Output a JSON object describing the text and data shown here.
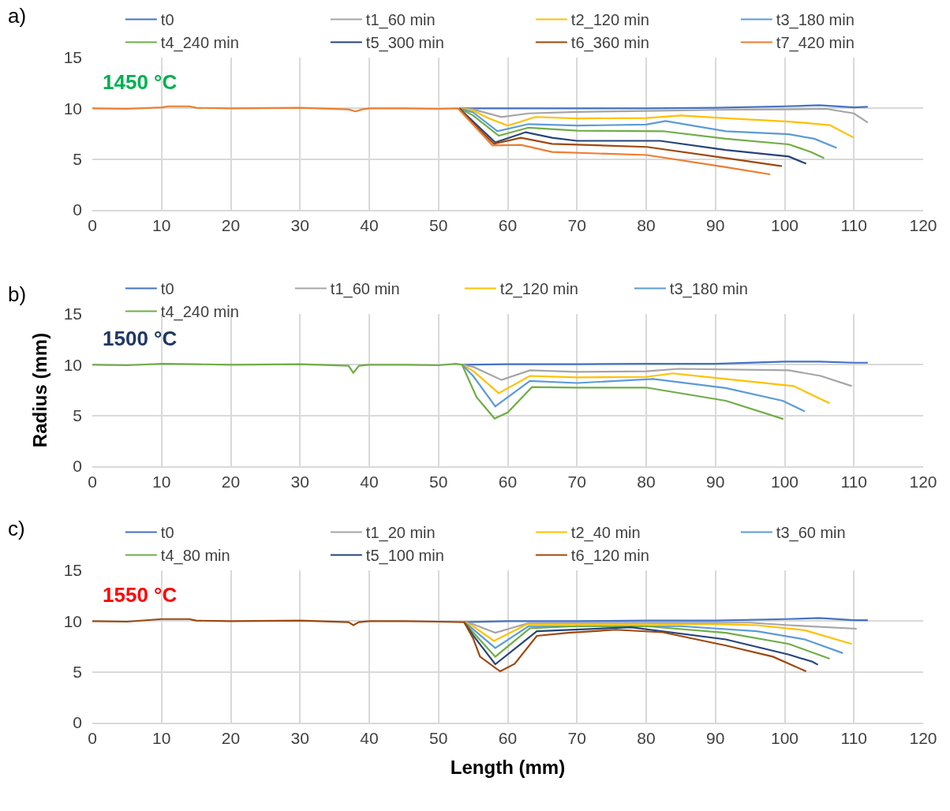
{
  "chart_data": [
    {
      "type": "line",
      "title": "a)",
      "annotations": [
        "1450 °C"
      ],
      "xlim": [
        0,
        120
      ],
      "xticks": [
        0,
        10,
        20,
        30,
        40,
        50,
        60,
        70,
        80,
        90,
        100,
        110,
        120
      ],
      "ylim": [
        0,
        15
      ],
      "yticks": [
        0,
        5,
        10,
        15
      ],
      "grid": true,
      "legend": "top",
      "marker": "none",
      "line_style": "solid",
      "series": [
        {
          "name": "t0",
          "color": "#4472c4",
          "x": [
            53,
            60,
            70,
            80,
            90,
            100,
            105,
            110,
            112
          ],
          "values": [
            10,
            10,
            10,
            10,
            10.05,
            10.2,
            10.3,
            10.1,
            10.15
          ]
        },
        {
          "name": "t1_60 min",
          "color": "#a5a5a5",
          "x": [
            53,
            55,
            59.1,
            63,
            70,
            80,
            90,
            100,
            106,
            110,
            112
          ],
          "values": [
            10,
            9.9,
            9.15,
            9.5,
            9.65,
            9.75,
            9.85,
            9.9,
            9.95,
            9.5,
            8.6
          ]
        },
        {
          "name": "t2_120 min",
          "color": "#ffc000",
          "x": [
            53,
            55,
            57,
            60,
            64,
            70,
            80,
            85,
            92,
            100.6,
            106.5,
            110
          ],
          "values": [
            10,
            9.8,
            9.1,
            8.3,
            9.15,
            9.0,
            9.05,
            9.3,
            9.0,
            8.7,
            8.35,
            7.1
          ]
        },
        {
          "name": "t3_180 min",
          "color": "#5b9bd5",
          "x": [
            53,
            55,
            58.5,
            63,
            70,
            80,
            82.8,
            91.5,
            100.6,
            104.3,
            107.5
          ],
          "values": [
            10,
            9.6,
            7.75,
            8.45,
            8.3,
            8.4,
            8.75,
            7.75,
            7.45,
            7.0,
            6.1
          ]
        },
        {
          "name": "t4_240 min",
          "color": "#70ad47",
          "x": [
            53,
            55,
            58.7,
            63,
            70,
            82.4,
            91.5,
            100.6,
            103.8,
            105.7
          ],
          "values": [
            10,
            9.3,
            7.3,
            8.1,
            7.8,
            7.75,
            7.0,
            6.45,
            5.7,
            5.1
          ]
        },
        {
          "name": "t5_300 min",
          "color": "#264478",
          "x": [
            53,
            55,
            58.2,
            62.6,
            66.4,
            70,
            82,
            91.5,
            100.6,
            103.1
          ],
          "values": [
            10,
            8.7,
            6.65,
            7.65,
            7.1,
            6.8,
            6.8,
            5.9,
            5.25,
            4.55
          ]
        },
        {
          "name": "t6_360 min",
          "color": "#9e480e",
          "x": [
            53,
            55,
            58,
            61.9,
            66.4,
            80.1,
            91.5,
            99.6
          ],
          "values": [
            10,
            8.5,
            6.5,
            7.1,
            6.5,
            6.2,
            5.1,
            4.3
          ]
        },
        {
          "name": "t7_420 min",
          "color": "#ed7d31",
          "x": [
            0,
            5,
            10,
            11,
            14,
            15,
            20,
            30,
            37,
            38,
            39,
            40,
            45,
            50,
            52.8,
            55,
            57.8,
            61.9,
            66.4,
            80.1,
            91.5,
            97.9
          ],
          "values": [
            10,
            9.95,
            10.1,
            10.2,
            10.2,
            10.05,
            10,
            10.05,
            9.9,
            9.7,
            9.9,
            10,
            10,
            9.95,
            10,
            8.4,
            6.35,
            6.4,
            5.7,
            5.4,
            4.2,
            3.5
          ]
        }
      ]
    },
    {
      "type": "line",
      "title": "b)",
      "annotations": [
        "1500 °C"
      ],
      "ylabel": "Radius (mm)",
      "xlim": [
        0,
        120
      ],
      "xticks": [
        0,
        10,
        20,
        30,
        40,
        50,
        60,
        70,
        80,
        90,
        100,
        110,
        120
      ],
      "ylim": [
        0,
        15
      ],
      "yticks": [
        0,
        5,
        10,
        15
      ],
      "grid": true,
      "legend": "top",
      "marker": "none",
      "line_style": "solid",
      "series": [
        {
          "name": "t0",
          "color": "#4472c4",
          "x": [
            53.4,
            60,
            70,
            80,
            90,
            100,
            105,
            110,
            112
          ],
          "values": [
            10,
            10.05,
            10.05,
            10.1,
            10.1,
            10.3,
            10.3,
            10.2,
            10.2
          ]
        },
        {
          "name": "t1_60 min",
          "color": "#a5a5a5",
          "x": [
            53.4,
            55,
            59.1,
            63.2,
            70,
            80,
            84.7,
            100.6,
            105.2,
            109.7
          ],
          "values": [
            10,
            9.8,
            8.5,
            9.45,
            9.3,
            9.35,
            9.6,
            9.45,
            8.9,
            7.9
          ]
        },
        {
          "name": "t2_120 min",
          "color": "#ffc000",
          "x": [
            53.4,
            55,
            58.7,
            63.2,
            70,
            80,
            83.8,
            91.5,
            101.3,
            106.5
          ],
          "values": [
            10,
            9.4,
            7.2,
            8.9,
            8.75,
            8.8,
            9.15,
            8.6,
            7.9,
            6.2
          ]
        },
        {
          "name": "t3_180 min",
          "color": "#5b9bd5",
          "x": [
            53.4,
            55,
            58.2,
            63.2,
            70,
            81,
            91.5,
            99.7,
            102.9
          ],
          "values": [
            10,
            8.9,
            5.9,
            8.4,
            8.2,
            8.6,
            7.7,
            6.45,
            5.4
          ]
        },
        {
          "name": "t4_240 min",
          "color": "#70ad47",
          "x": [
            0,
            5,
            10,
            15,
            20,
            30,
            37,
            37.7,
            38.5,
            40,
            45,
            50,
            52.5,
            53.4,
            55.5,
            58.1,
            60,
            63.5,
            70,
            80,
            91.5,
            99.8
          ],
          "values": [
            10,
            9.95,
            10.1,
            10.05,
            10,
            10.05,
            9.9,
            9.2,
            9.9,
            10,
            10,
            9.95,
            10.1,
            10,
            6.8,
            4.7,
            5.3,
            7.8,
            7.75,
            7.75,
            6.45,
            4.65
          ]
        }
      ]
    },
    {
      "type": "line",
      "title": "c)",
      "annotations": [
        "1550 °C"
      ],
      "xlabel": "Length (mm)",
      "xlim": [
        0,
        120
      ],
      "xticks": [
        0,
        10,
        20,
        30,
        40,
        50,
        60,
        70,
        80,
        90,
        100,
        110,
        120
      ],
      "ylim": [
        0,
        15
      ],
      "yticks": [
        0,
        5,
        10,
        15
      ],
      "grid": true,
      "legend": "top",
      "marker": "none",
      "line_style": "solid",
      "series": [
        {
          "name": "t0",
          "color": "#4472c4",
          "x": [
            53.7,
            60,
            70,
            80,
            90,
            100,
            105,
            110,
            112
          ],
          "values": [
            9.9,
            10,
            10,
            10.05,
            10.05,
            10.2,
            10.3,
            10.1,
            10.1
          ]
        },
        {
          "name": "t1_20 min",
          "color": "#a5a5a5",
          "x": [
            53.7,
            55,
            58.2,
            63.2,
            70,
            80,
            95,
            100.6,
            110.4
          ],
          "values": [
            9.9,
            9.7,
            8.85,
            9.85,
            9.85,
            9.85,
            9.85,
            9.6,
            9.25
          ]
        },
        {
          "name": "t2_40 min",
          "color": "#ffc000",
          "x": [
            53.7,
            55,
            58,
            62.8,
            70,
            80,
            90,
            96,
            102.9,
            109.7
          ],
          "values": [
            9.9,
            9.5,
            8.05,
            9.7,
            9.7,
            9.7,
            9.7,
            9.6,
            9.1,
            7.75
          ]
        },
        {
          "name": "t3_60 min",
          "color": "#5b9bd5",
          "x": [
            53.7,
            55,
            58.2,
            63,
            70,
            85,
            96,
            102.9,
            108.4
          ],
          "values": [
            9.9,
            9.2,
            7.35,
            9.5,
            9.5,
            9.5,
            9.0,
            8.2,
            6.85
          ]
        },
        {
          "name": "t4_80 min",
          "color": "#70ad47",
          "x": [
            53.7,
            55,
            58.2,
            63.2,
            70,
            80,
            91.5,
            100.6,
            106.5
          ],
          "values": [
            9.9,
            8.9,
            6.5,
            9.3,
            9.5,
            9.5,
            8.85,
            7.75,
            6.3
          ]
        },
        {
          "name": "t5_100 min",
          "color": "#264478",
          "x": [
            53.7,
            55,
            58.2,
            64.2,
            77.8,
            91.5,
            100.6,
            104,
            104.8
          ],
          "values": [
            9.9,
            8.6,
            5.75,
            9.0,
            9.4,
            8.2,
            6.7,
            6.0,
            5.7
          ]
        },
        {
          "name": "t6_120 min",
          "color": "#9e480e",
          "x": [
            0,
            5,
            10,
            14,
            15,
            20,
            30,
            37,
            37.7,
            38.5,
            40,
            45,
            50,
            53.7,
            55,
            56,
            58.9,
            61,
            64.2,
            68.7,
            75.6,
            82.4,
            91.5,
            98.3,
            103.1
          ],
          "values": [
            10,
            9.95,
            10.2,
            10.2,
            10.05,
            10,
            10.05,
            9.9,
            9.6,
            9.9,
            10,
            10,
            9.95,
            9.9,
            8.3,
            6.5,
            5.05,
            5.8,
            8.55,
            8.85,
            9.15,
            8.9,
            7.6,
            6.5,
            5.05
          ]
        }
      ]
    }
  ]
}
